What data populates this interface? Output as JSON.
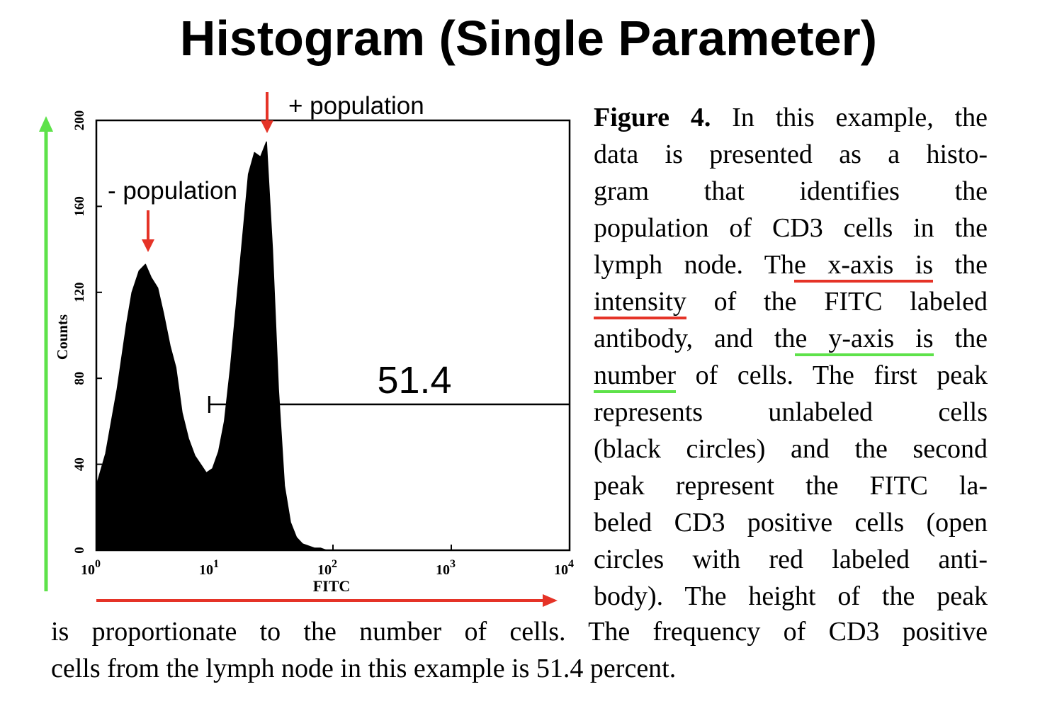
{
  "slide": {
    "title": "Histogram (Single Parameter)"
  },
  "annotations": {
    "pos_population": "+ population",
    "neg_population": "- population",
    "colors": {
      "red_arrow": "#e53327",
      "green_arrow": "#5ee24a"
    }
  },
  "chart_data": {
    "type": "area",
    "xlabel": "FITC",
    "ylabel": "Counts",
    "xscale": "log",
    "xlim": [
      1,
      10000
    ],
    "ylim": [
      0,
      200
    ],
    "x_ticks": [
      {
        "base": "10",
        "exp": "0"
      },
      {
        "base": "10",
        "exp": "1"
      },
      {
        "base": "10",
        "exp": "2"
      },
      {
        "base": "10",
        "exp": "3"
      },
      {
        "base": "10",
        "exp": "4"
      }
    ],
    "y_ticks": [
      "0",
      "40",
      "80",
      "120",
      "160",
      "200"
    ],
    "gate": {
      "label": "51.4",
      "x_start": 9,
      "x_end": 10000
    },
    "series": [
      {
        "x": [
          1.0,
          1.2,
          1.5,
          1.8,
          2.0,
          2.3,
          2.6,
          2.9,
          3.3,
          3.7,
          4.2,
          4.7,
          5.3,
          6.0,
          6.8,
          7.6,
          8.5,
          9.6,
          10.8,
          12.1,
          13.6,
          15.3,
          17.2,
          19.3,
          21.7,
          24.4,
          27.4,
          30.8,
          34.6,
          38.9,
          43.7,
          49.1,
          55.2,
          62.0,
          69.7,
          78.3,
          88.0,
          100
        ],
        "y": [
          30,
          45,
          75,
          105,
          120,
          130,
          133,
          127,
          122,
          110,
          95,
          85,
          64,
          52,
          44,
          40,
          36,
          38,
          46,
          60,
          85,
          115,
          145,
          175,
          185,
          183,
          190,
          140,
          75,
          30,
          13,
          6,
          3,
          2,
          1,
          1,
          0,
          0
        ]
      }
    ]
  },
  "caption": {
    "figure_label": "Figure 4.",
    "l1_rest": " In this example, the",
    "l2": "data is presented as a histo-",
    "l3": "gram that identifies the",
    "l4": "population of CD3 cells in the",
    "l5a": "lymph node. Th",
    "l5b": "e x-axis is",
    "l5c": " the",
    "l6a": "intensity",
    "l6b": " of the FITC labeled",
    "l7a": "antibody, and th",
    "l7b": "e y-axis is",
    "l7c": " the",
    "l8a": "number",
    "l8b": " of cells. The first peak",
    "l9": "represents unlabeled cells",
    "l10": "(black circles) and the second",
    "l11": "peak represent the FITC la-",
    "l12": "beled CD3 positive cells (open",
    "l13": "circles with red labeled anti-",
    "l14": "body). The height of the peak",
    "l15": "is proportionate to the number of cells. The frequency of CD3 positive",
    "l16": "cells from the lymph node in this example is 51.4 percent."
  }
}
